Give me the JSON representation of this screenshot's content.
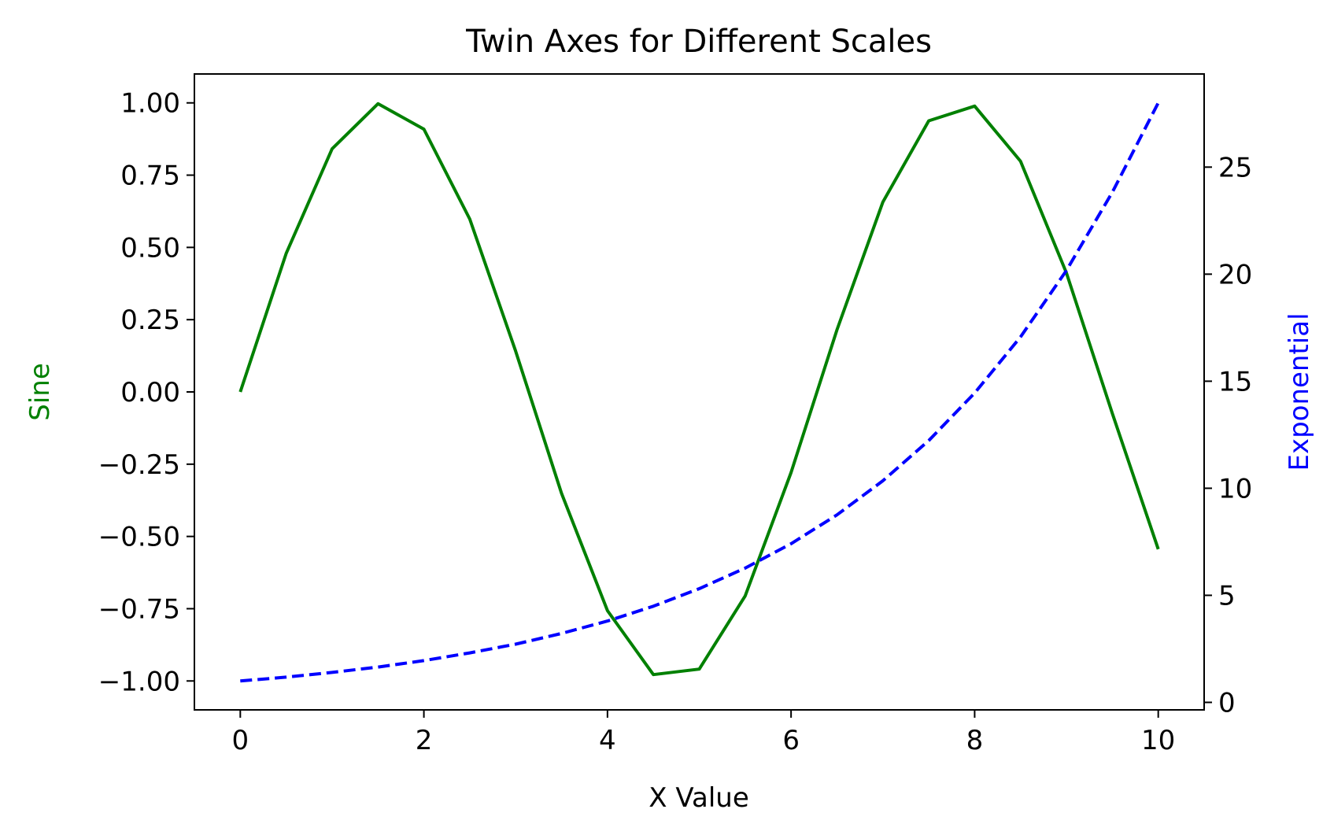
{
  "chart_data": {
    "type": "line",
    "title": "Twin Axes for Different Scales",
    "xlabel": "X Value",
    "ylabel_left": "Sine",
    "ylabel_right": "Exponential",
    "xlim": [
      -0.5,
      10.5
    ],
    "ylim_left": [
      -1.1,
      1.1
    ],
    "ylim_right": [
      -0.35,
      29.35
    ],
    "x_ticks": [
      0,
      2,
      4,
      6,
      8,
      10
    ],
    "x_tick_labels": [
      "0",
      "2",
      "4",
      "6",
      "8",
      "10"
    ],
    "y_left_ticks": [
      1.0,
      0.75,
      0.5,
      0.25,
      0.0,
      -0.25,
      -0.5,
      -0.75,
      -1.0
    ],
    "y_left_tick_labels": [
      "1.00",
      "0.75",
      "0.50",
      "0.25",
      "0.00",
      "−0.25",
      "−0.50",
      "−0.75",
      "−1.00"
    ],
    "y_right_ticks": [
      0,
      5,
      10,
      15,
      20,
      25
    ],
    "y_right_tick_labels": [
      "0",
      "5",
      "10",
      "15",
      "20",
      "25"
    ],
    "grid": false,
    "series": [
      {
        "axis": "left",
        "color": "#008000",
        "style": "solid",
        "x": [
          0,
          0.5,
          1.0,
          1.5,
          2.0,
          2.5,
          3.0,
          3.5,
          4.0,
          4.5,
          5.0,
          5.5,
          6.0,
          6.5,
          7.0,
          7.5,
          8.0,
          8.5,
          9.0,
          9.5,
          10.0
        ],
        "values": [
          0.0,
          0.479,
          0.841,
          0.997,
          0.909,
          0.598,
          0.141,
          -0.351,
          -0.757,
          -0.978,
          -0.959,
          -0.706,
          -0.279,
          0.215,
          0.657,
          0.938,
          0.989,
          0.798,
          0.412,
          -0.075,
          -0.544
        ]
      },
      {
        "axis": "right",
        "color": "#0000ff",
        "style": "dashed",
        "x": [
          0,
          0.5,
          1.0,
          1.5,
          2.0,
          2.5,
          3.0,
          3.5,
          4.0,
          4.5,
          5.0,
          5.5,
          6.0,
          6.5,
          7.0,
          7.5,
          8.0,
          8.5,
          9.0,
          9.5,
          10.0
        ],
        "values": [
          1.0,
          1.18,
          1.4,
          1.65,
          1.95,
          2.31,
          2.72,
          3.22,
          3.8,
          4.49,
          5.31,
          6.27,
          7.41,
          8.76,
          10.35,
          12.23,
          14.45,
          17.07,
          20.17,
          23.83,
          28.0
        ]
      }
    ],
    "colors": {
      "axis": "#000000",
      "left_label": "#008000",
      "right_label": "#0000ff"
    }
  }
}
